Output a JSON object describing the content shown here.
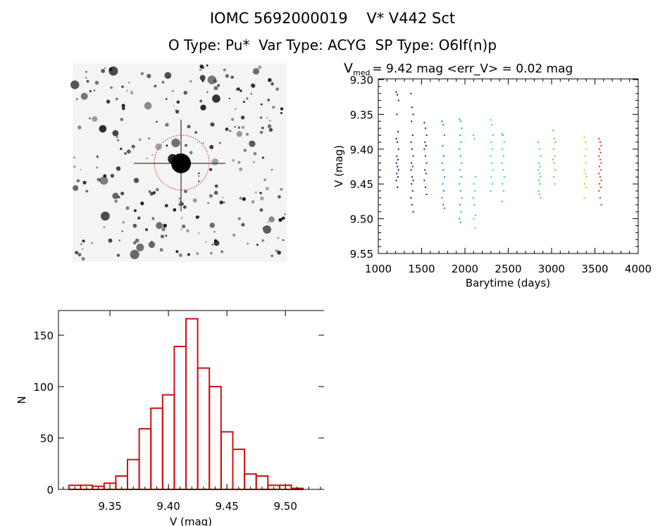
{
  "header": {
    "title": "IOMC 5692000019    V* V442 Sct",
    "subtitle": "O Type: Pu*  Var Type: ACYG  SP Type: O6If(n)p"
  },
  "colors": {
    "histogram": "#d01010",
    "marker_circle": "#d01010"
  },
  "chart_data": [
    {
      "type": "image",
      "description_icon": "star-field-finder-chart"
    },
    {
      "type": "scatter",
      "title_main": "V",
      "title_sub": "med",
      "title_rest": " = 9.42 mag <err_V> = 0.02 mag",
      "xlabel": "Barytime (days)",
      "ylabel": "V (mag)",
      "xlim": [
        1000,
        4000
      ],
      "ylim": [
        9.55,
        9.3
      ],
      "y_inverted": true,
      "xticks": [
        "1000",
        "1500",
        "2000",
        "2500",
        "3000",
        "3500",
        "4000"
      ],
      "yticks": [
        "9.30",
        "9.35",
        "9.40",
        "9.45",
        "9.50",
        "9.55"
      ],
      "seasons": [
        {
          "t": 1220,
          "color": "#3a0060",
          "v": [
            9.318,
            9.322,
            9.33,
            9.35,
            9.375,
            9.385,
            9.39,
            9.4,
            9.41,
            9.415,
            9.42,
            9.425,
            9.43,
            9.435,
            9.44,
            9.445,
            9.455
          ]
        },
        {
          "t": 1390,
          "color": "#3c0a8c",
          "v": [
            9.32,
            9.34,
            9.35,
            9.36,
            9.38,
            9.39,
            9.4,
            9.41,
            9.42,
            9.425,
            9.43,
            9.44,
            9.445,
            9.45,
            9.46,
            9.47,
            9.48,
            9.49
          ]
        },
        {
          "t": 1545,
          "color": "#1818a8",
          "v": [
            9.362,
            9.37,
            9.38,
            9.39,
            9.395,
            9.4,
            9.41,
            9.42,
            9.43,
            9.435,
            9.445,
            9.455,
            9.465
          ]
        },
        {
          "t": 1750,
          "color": "#1878d0",
          "v": [
            9.36,
            9.365,
            9.38,
            9.395,
            9.41,
            9.42,
            9.43,
            9.44,
            9.45,
            9.46,
            9.47,
            9.48,
            9.485
          ]
        },
        {
          "t": 1950,
          "color": "#10a0e0",
          "v": [
            9.357,
            9.36,
            9.37,
            9.38,
            9.39,
            9.4,
            9.41,
            9.42,
            9.43,
            9.44,
            9.45,
            9.46,
            9.47,
            9.48,
            9.49,
            9.5,
            9.505
          ]
        },
        {
          "t": 2110,
          "color": "#10d0e8",
          "v": [
            9.38,
            9.385,
            9.44,
            9.45,
            9.46,
            9.47,
            9.48,
            9.495,
            9.5,
            9.513
          ]
        },
        {
          "t": 2310,
          "color": "#10d8c0",
          "v": [
            9.358,
            9.365,
            9.38,
            9.39,
            9.4,
            9.41,
            9.42,
            9.43,
            9.44,
            9.45,
            9.46
          ]
        },
        {
          "t": 2440,
          "color": "#10d890",
          "v": [
            9.378,
            9.38,
            9.39,
            9.4,
            9.41,
            9.42,
            9.43,
            9.44,
            9.45,
            9.46,
            9.475
          ]
        },
        {
          "t": 2860,
          "color": "#20e050",
          "v": [
            9.39,
            9.4,
            9.41,
            9.42,
            9.425,
            9.43,
            9.435,
            9.44,
            9.445,
            9.45,
            9.46,
            9.465,
            9.47
          ]
        },
        {
          "t": 3030,
          "color": "#40e020",
          "v": [
            9.373,
            9.385,
            9.39,
            9.4,
            9.41,
            9.415,
            9.42,
            9.43,
            9.44,
            9.45
          ]
        },
        {
          "t": 3390,
          "color": "#e0c000",
          "v": [
            9.383,
            9.39,
            9.4,
            9.41,
            9.42,
            9.43,
            9.435,
            9.44,
            9.45,
            9.455,
            9.47
          ]
        },
        {
          "t": 3560,
          "color": "#e03010",
          "v": [
            9.385,
            9.39,
            9.395,
            9.4,
            9.405,
            9.41,
            9.415,
            9.42,
            9.425,
            9.43,
            9.435,
            9.44,
            9.445,
            9.45,
            9.455,
            9.46,
            9.47,
            9.48
          ]
        }
      ]
    },
    {
      "type": "bar",
      "subtype": "histogram",
      "xlabel": "V (mag)",
      "ylabel": "N",
      "xlim": [
        9.306,
        9.533
      ],
      "ylim": [
        0,
        174
      ],
      "xticks": [
        "9.35",
        "9.40",
        "9.45",
        "9.50"
      ],
      "yticks": [
        "0",
        "50",
        "100",
        "150"
      ],
      "bin_width": 0.01,
      "bin_start": 9.315,
      "values": [
        4,
        4,
        3,
        6,
        13,
        29,
        59,
        79,
        92,
        139,
        166,
        118,
        100,
        56,
        39,
        15,
        13,
        4,
        4,
        1
      ]
    }
  ]
}
